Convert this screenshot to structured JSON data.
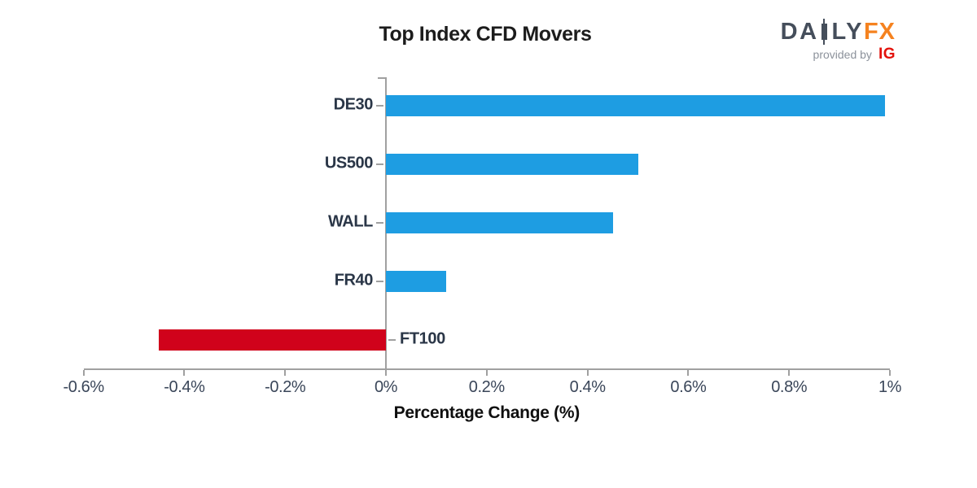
{
  "title": "Top Index CFD Movers",
  "logo": {
    "daily_left": "DA",
    "daily_right": "LY",
    "fx": "FX",
    "provided_by": "provided by",
    "ig": "IG",
    "colors": {
      "daily": "#454e5b",
      "fx": "#f5821f",
      "provided_by": "#8c929b",
      "ig": "#e3120b"
    }
  },
  "colors": {
    "positive_bar": "#1e9de2",
    "negative_bar": "#d0021b",
    "axis": "#a0a0a0",
    "category_label": "#2a3647",
    "tick_label": "#3a4659"
  },
  "chart_data": {
    "type": "bar",
    "orientation": "horizontal",
    "title": "Top Index CFD Movers",
    "categories": [
      "DE30",
      "US500",
      "WALL",
      "FR40",
      "FT100"
    ],
    "values": [
      0.99,
      0.5,
      0.45,
      0.12,
      -0.45
    ],
    "bar_colors": [
      "#1e9de2",
      "#1e9de2",
      "#1e9de2",
      "#1e9de2",
      "#d0021b"
    ],
    "xlabel": "Percentage Change (%)",
    "xlim": [
      -0.6,
      1.0
    ],
    "xticks": [
      -0.6,
      -0.4,
      -0.2,
      0,
      0.2,
      0.4,
      0.6,
      0.8,
      1.0
    ],
    "xtick_labels": [
      "-0.6%",
      "-0.4%",
      "-0.2%",
      "0%",
      "0.2%",
      "0.4%",
      "0.6%",
      "0.8%",
      "1%"
    ],
    "grid": false,
    "legend": false
  }
}
